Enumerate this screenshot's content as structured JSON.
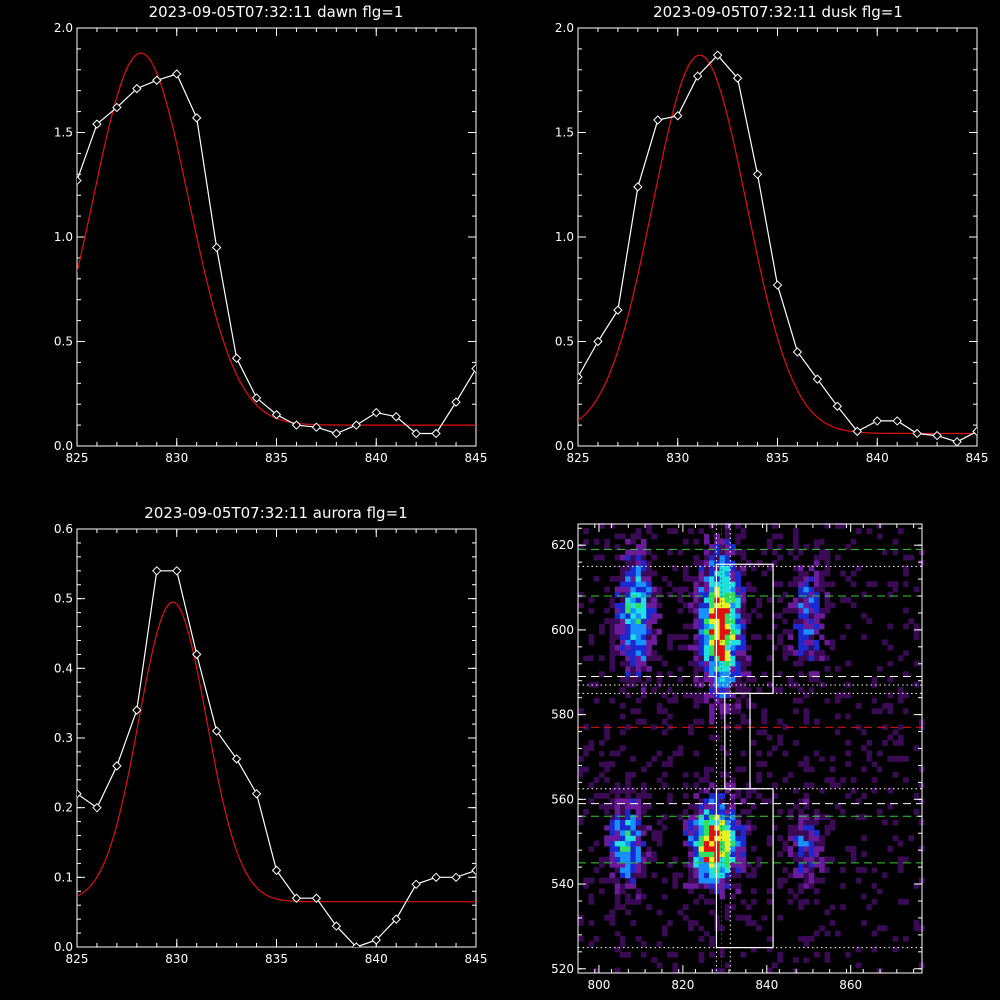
{
  "chart_data": [
    {
      "type": "line",
      "title": "2023-09-05T07:32:11 dawn flg=1",
      "xlim": [
        825,
        845
      ],
      "ylim": [
        0.0,
        2.0
      ],
      "xticks": [
        825,
        830,
        835,
        840,
        845
      ],
      "yticks": [
        0.0,
        0.5,
        1.0,
        1.5,
        2.0
      ],
      "xtick_labels": [
        "825",
        "830",
        "835",
        "840",
        "845"
      ],
      "ytick_labels": [
        "0.0",
        "0.5",
        "1.0",
        "1.5",
        "2.0"
      ],
      "series": [
        {
          "color": "#ffffff",
          "marker": "diamond",
          "x": [
            825,
            826,
            827,
            828,
            829,
            830,
            831,
            832,
            833,
            834,
            835,
            836,
            837,
            838,
            839,
            840,
            841,
            842,
            843,
            844,
            845
          ],
          "y": [
            1.27,
            1.54,
            1.62,
            1.71,
            1.75,
            1.78,
            1.57,
            0.95,
            0.42,
            0.23,
            0.15,
            0.1,
            0.09,
            0.06,
            0.1,
            0.16,
            0.14,
            0.06,
            0.06,
            0.21,
            0.37
          ]
        },
        {
          "color": "#e01010",
          "marker": "none",
          "fit": {
            "amplitude": 1.78,
            "center": 828.2,
            "sigma": 2.4,
            "offset": 0.1
          }
        }
      ]
    },
    {
      "type": "line",
      "title": "2023-09-05T07:32:11 dusk flg=1",
      "xlim": [
        825,
        845
      ],
      "ylim": [
        0.0,
        2.0
      ],
      "xticks": [
        825,
        830,
        835,
        840,
        845
      ],
      "yticks": [
        0.0,
        0.5,
        1.0,
        1.5,
        2.0
      ],
      "xtick_labels": [
        "825",
        "830",
        "835",
        "840",
        "845"
      ],
      "ytick_labels": [
        "0.0",
        "0.5",
        "1.0",
        "1.5",
        "2.0"
      ],
      "series": [
        {
          "color": "#ffffff",
          "marker": "diamond",
          "x": [
            825,
            826,
            827,
            828,
            829,
            830,
            831,
            832,
            833,
            834,
            835,
            836,
            837,
            838,
            839,
            840,
            841,
            842,
            843,
            844,
            845
          ],
          "y": [
            0.33,
            0.5,
            0.65,
            1.24,
            1.56,
            1.58,
            1.77,
            1.87,
            1.76,
            1.3,
            0.77,
            0.45,
            0.32,
            0.19,
            0.07,
            0.12,
            0.12,
            0.06,
            0.05,
            0.02,
            0.07
          ]
        },
        {
          "color": "#e01010",
          "marker": "none",
          "fit": {
            "amplitude": 1.81,
            "center": 831.1,
            "sigma": 2.35,
            "offset": 0.06
          }
        }
      ]
    },
    {
      "type": "line",
      "title": "2023-09-05T07:32:11 aurora flg=1",
      "xlim": [
        825,
        845
      ],
      "ylim": [
        0.0,
        0.6
      ],
      "xticks": [
        825,
        830,
        835,
        840,
        845
      ],
      "yticks": [
        0.0,
        0.1,
        0.2,
        0.3,
        0.4,
        0.5,
        0.6
      ],
      "xtick_labels": [
        "825",
        "830",
        "835",
        "840",
        "845"
      ],
      "ytick_labels": [
        "0.0",
        "0.1",
        "0.2",
        "0.3",
        "0.4",
        "0.5",
        "0.6"
      ],
      "series": [
        {
          "color": "#ffffff",
          "marker": "diamond",
          "x": [
            825,
            826,
            827,
            828,
            829,
            830,
            831,
            832,
            833,
            834,
            835,
            836,
            837,
            838,
            839,
            840,
            841,
            842,
            843,
            844,
            845
          ],
          "y": [
            0.22,
            0.2,
            0.26,
            0.34,
            0.54,
            0.54,
            0.42,
            0.31,
            0.27,
            0.22,
            0.11,
            0.07,
            0.07,
            0.03,
            0.0,
            0.01,
            0.04,
            0.09,
            0.1,
            0.1,
            0.11
          ]
        },
        {
          "color": "#e01010",
          "marker": "none",
          "fit": {
            "amplitude": 0.43,
            "center": 829.8,
            "sigma": 1.7,
            "offset": 0.065
          }
        }
      ]
    },
    {
      "type": "heatmap",
      "title": "",
      "xlim": [
        795,
        877
      ],
      "ylim": [
        519,
        625
      ],
      "xticks": [
        800,
        820,
        840,
        860
      ],
      "yticks": [
        520,
        540,
        560,
        580,
        600,
        620
      ],
      "xtick_labels": [
        "800",
        "820",
        "840",
        "860"
      ],
      "ytick_labels": [
        "520",
        "540",
        "560",
        "580",
        "600",
        "620"
      ],
      "colormap": [
        "#000000",
        "#3a0a55",
        "#6a1a9a",
        "#1a2ad0",
        "#1890ff",
        "#20e0e0",
        "#30e060",
        "#e8f020",
        "#e01010"
      ],
      "blobs": [
        {
          "x": 828.5,
          "y": 601,
          "sx": 3.5,
          "sy": 11,
          "peak": 1.0
        },
        {
          "x": 827,
          "y": 549,
          "sx": 4,
          "sy": 7,
          "peak": 1.0
        },
        {
          "x": 808,
          "y": 603,
          "sx": 3,
          "sy": 10,
          "peak": 0.65
        },
        {
          "x": 806,
          "y": 549,
          "sx": 3,
          "sy": 7,
          "peak": 0.6
        },
        {
          "x": 849,
          "y": 603,
          "sx": 3,
          "sy": 9,
          "peak": 0.4
        },
        {
          "x": 849,
          "y": 548,
          "sx": 3,
          "sy": 6,
          "peak": 0.4
        }
      ],
      "boxes": [
        {
          "x0": 828,
          "x1": 841.5,
          "y0": 585,
          "y1": 615.5,
          "color": "#ffffff"
        },
        {
          "x0": 830,
          "x1": 836,
          "y0": 562.5,
          "y1": 585,
          "color": "#ffffff"
        },
        {
          "x0": 828,
          "x1": 841.5,
          "y0": 525,
          "y1": 562.5,
          "color": "#ffffff"
        }
      ],
      "hlines": [
        {
          "y": 619,
          "color": "#30d030",
          "style": "dashed"
        },
        {
          "y": 615,
          "color": "#ffffff",
          "style": "dotted"
        },
        {
          "y": 608,
          "color": "#30d030",
          "style": "dashed"
        },
        {
          "y": 589,
          "color": "#ffffff",
          "style": "dashed"
        },
        {
          "y": 587,
          "color": "#ffffff",
          "style": "dotted"
        },
        {
          "y": 585,
          "color": "#ffffff",
          "style": "dotted"
        },
        {
          "y": 577,
          "color": "#e01010",
          "style": "dashed"
        },
        {
          "y": 562.5,
          "color": "#ffffff",
          "style": "dotted"
        },
        {
          "y": 559,
          "color": "#ffffff",
          "style": "dashed"
        },
        {
          "y": 556,
          "color": "#30d030",
          "style": "dashed"
        },
        {
          "y": 545,
          "color": "#30d030",
          "style": "dashed"
        },
        {
          "y": 525,
          "color": "#ffffff",
          "style": "dotted"
        }
      ],
      "vlines": [
        {
          "x": 828,
          "color": "#ffffff",
          "style": "dotted"
        },
        {
          "x": 829.2,
          "color": "#e01010",
          "style": "dotted"
        },
        {
          "x": 831.3,
          "color": "#ffffff",
          "style": "dotted"
        }
      ]
    }
  ]
}
